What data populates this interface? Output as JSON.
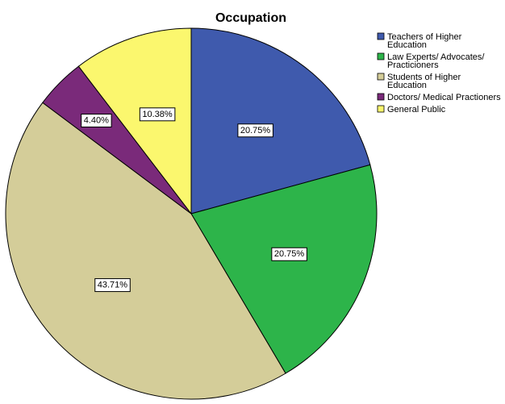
{
  "chart_data": {
    "type": "pie",
    "title": "Occupation",
    "slices": [
      {
        "label": [
          "Teachers of Higher",
          "Education"
        ],
        "value": 20.75,
        "value_label": "20.75%",
        "color": "#3f5aad"
      },
      {
        "label": [
          "Law Experts/ Advocates/",
          "Practicioners"
        ],
        "value": 20.75,
        "value_label": "20.75%",
        "color": "#2db44a"
      },
      {
        "label": [
          "Students of Higher",
          "Education"
        ],
        "value": 43.71,
        "value_label": "43.71%",
        "color": "#d4cd99"
      },
      {
        "label": [
          "Doctors/ Medical Practioners"
        ],
        "value": 4.4,
        "value_label": "4.40%",
        "color": "#7a2a7a"
      },
      {
        "label": [
          "General Public"
        ],
        "value": 10.38,
        "value_label": "10.38%",
        "color": "#fbf76e"
      }
    ],
    "start_angle_deg": 0,
    "direction": "clockwise",
    "legend_position": "top-right"
  }
}
